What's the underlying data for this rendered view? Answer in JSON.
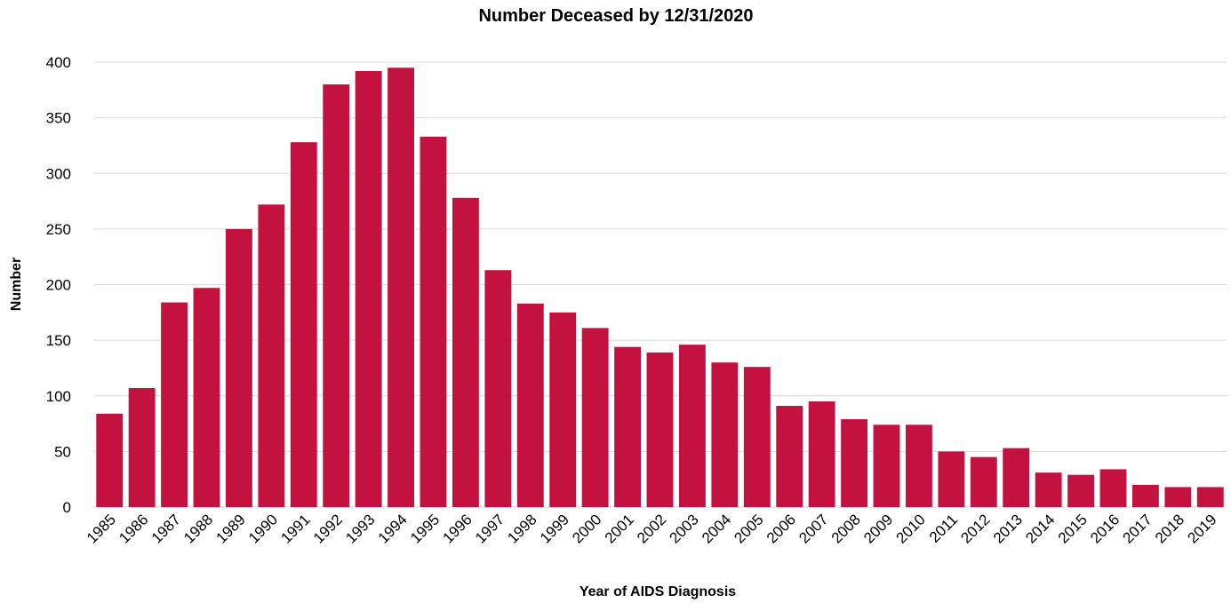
{
  "chart_data": {
    "type": "bar",
    "title": "Number Deceased by 12/31/2020",
    "xlabel": "Year of AIDS Diagnosis",
    "ylabel": "Number",
    "ylim": [
      0,
      400
    ],
    "yticks": [
      0,
      50,
      100,
      150,
      200,
      250,
      300,
      350,
      400
    ],
    "grid": true,
    "bar_color": "#c41240",
    "categories": [
      "1985",
      "1986",
      "1987",
      "1988",
      "1989",
      "1990",
      "1991",
      "1992",
      "1993",
      "1994",
      "1995",
      "1996",
      "1997",
      "1998",
      "1999",
      "2000",
      "2001",
      "2002",
      "2003",
      "2004",
      "2005",
      "2006",
      "2007",
      "2008",
      "2009",
      "2010",
      "2011",
      "2012",
      "2013",
      "2014",
      "2015",
      "2016",
      "2017",
      "2018",
      "2019"
    ],
    "values": [
      84,
      107,
      184,
      197,
      250,
      272,
      328,
      380,
      392,
      395,
      333,
      278,
      213,
      183,
      175,
      161,
      144,
      139,
      146,
      130,
      126,
      91,
      95,
      79,
      74,
      74,
      50,
      45,
      53,
      31,
      29,
      34,
      20,
      18,
      18
    ]
  }
}
